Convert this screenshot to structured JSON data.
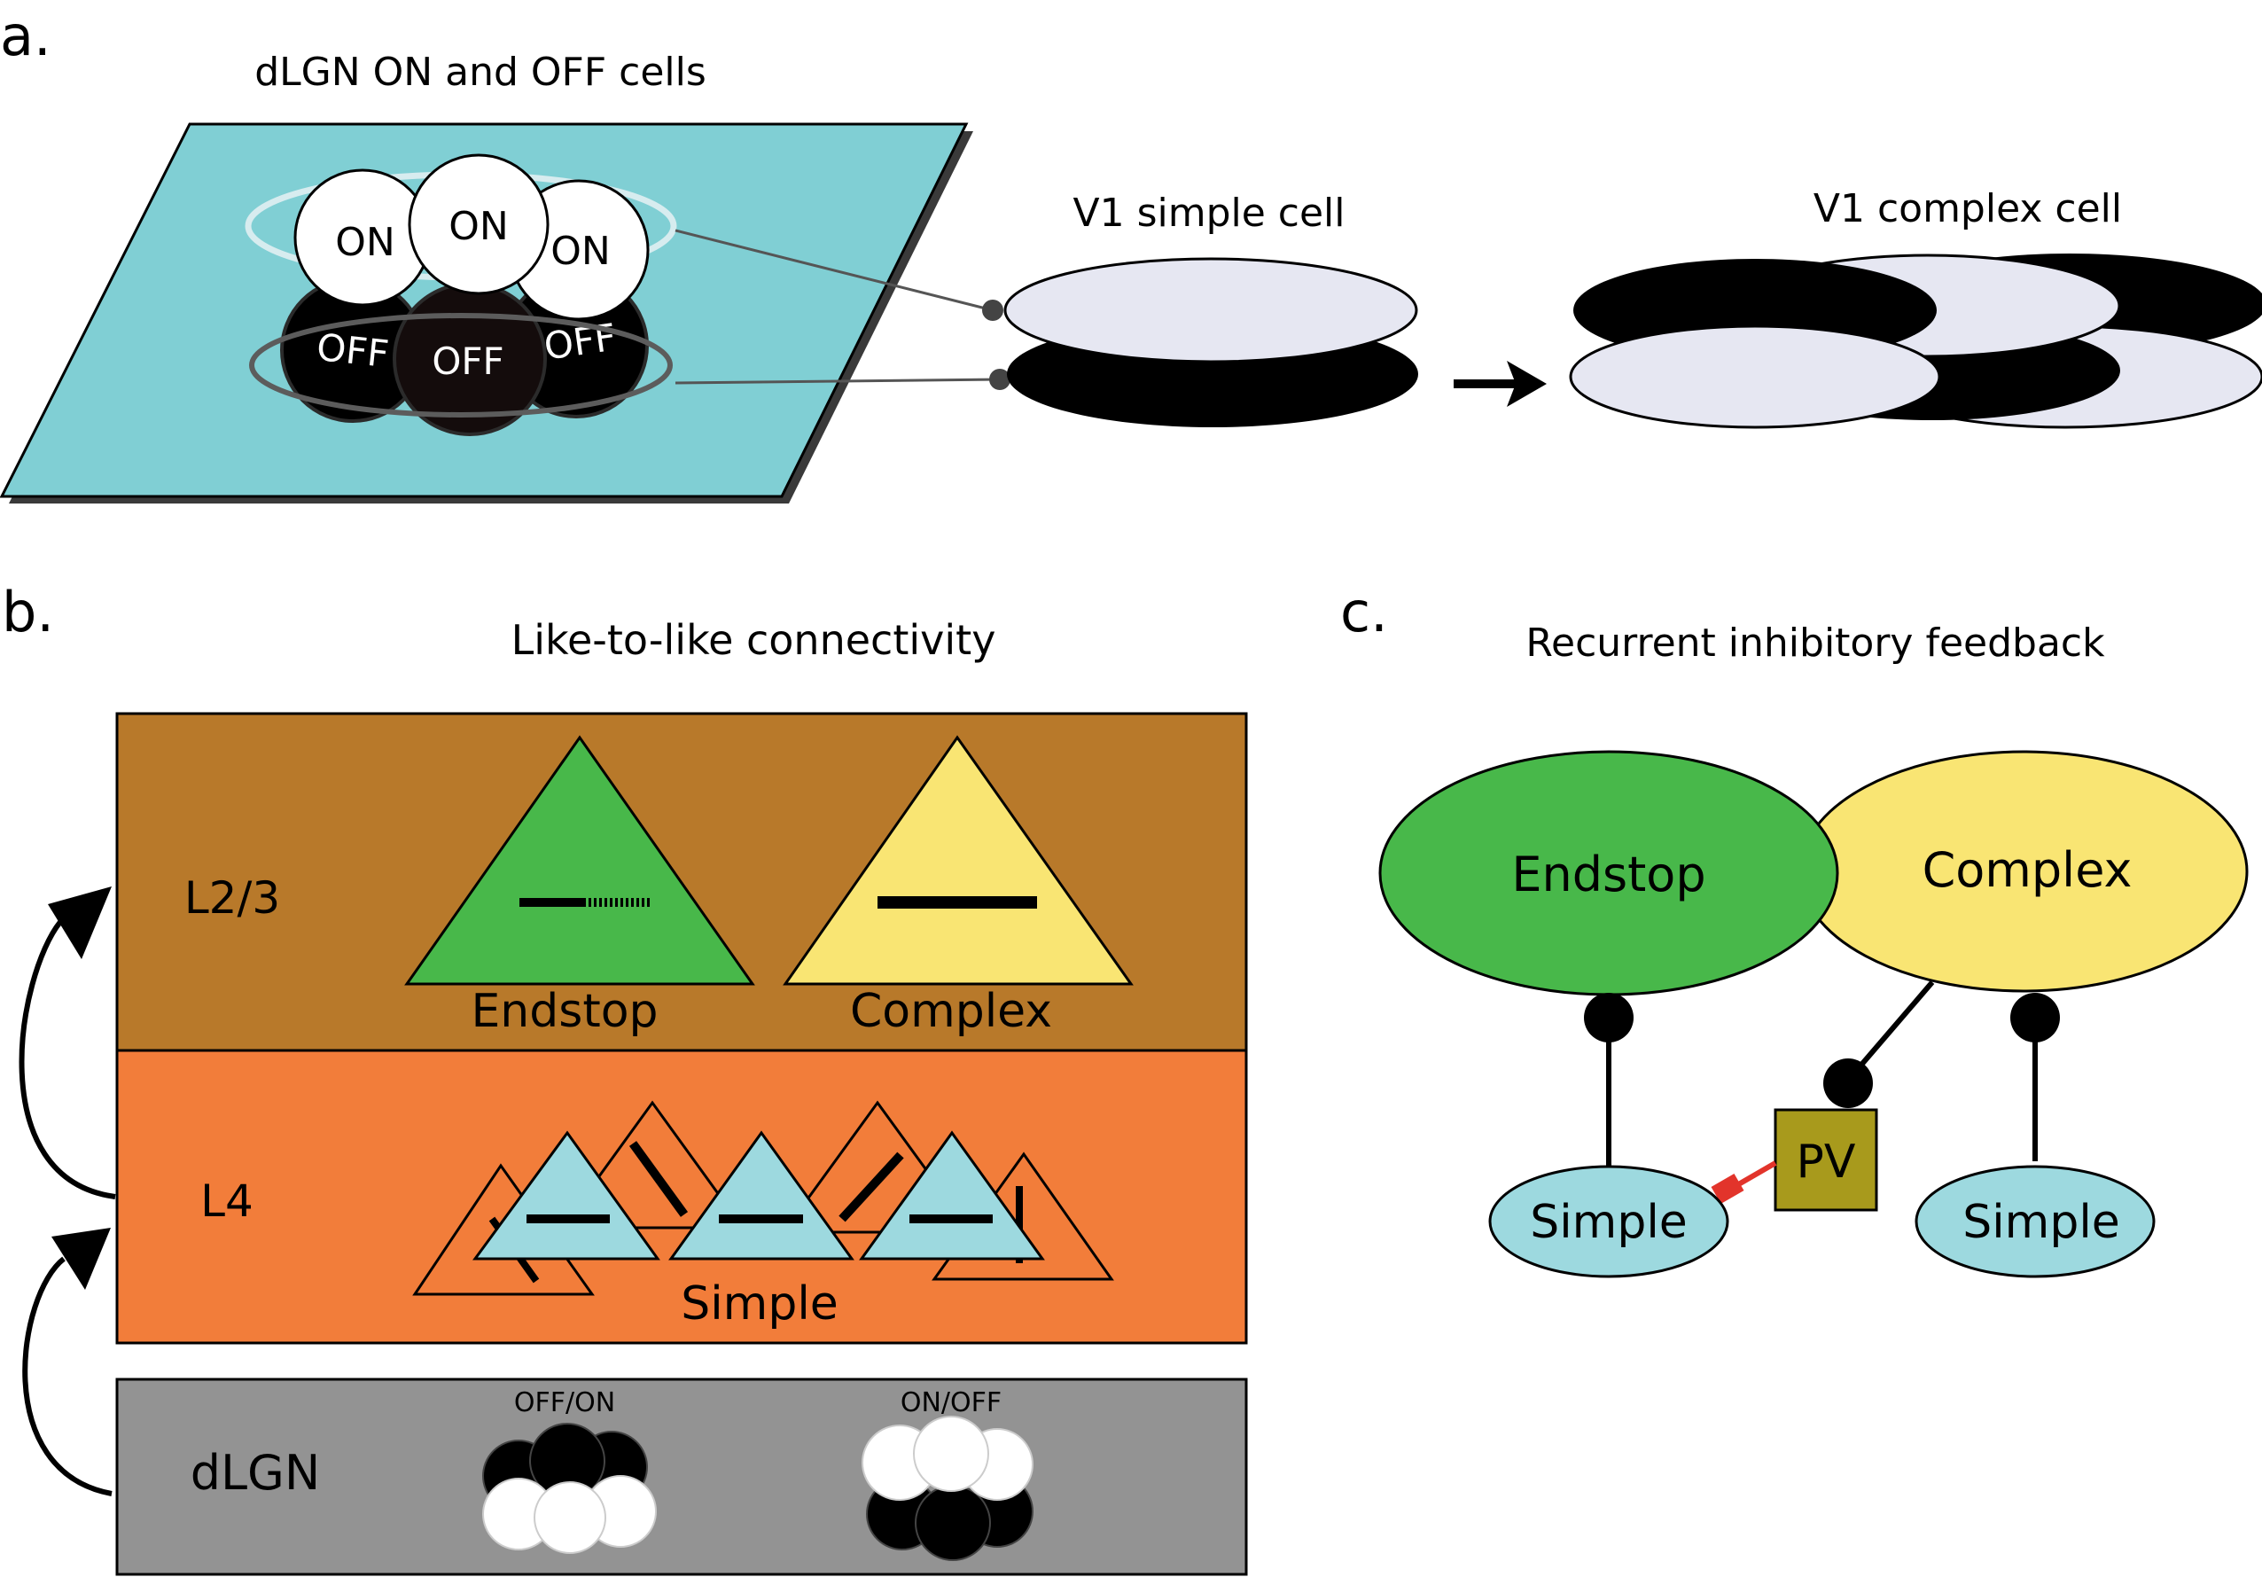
{
  "panel_a": {
    "label": "a.",
    "title": "dLGN ON and OFF cells",
    "on_labels": [
      "ON",
      "ON",
      "ON"
    ],
    "off_labels": [
      "OFF",
      "OFF",
      "OFF"
    ],
    "simple_label": "V1 simple cell",
    "complex_label": "V1 complex cell"
  },
  "panel_b": {
    "label": "b.",
    "title": "Like-to-like connectivity",
    "layer_l23": "L2/3",
    "layer_l4": "L4",
    "layer_dlgn": "dLGN",
    "endstop_label": "Endstop",
    "complex_label": "Complex",
    "simple_label": "Simple",
    "offon_label": "OFF/ON",
    "onoff_label": "ON/OFF"
  },
  "panel_c": {
    "label": "c.",
    "title": "Recurrent inhibitory feedback",
    "endstop_label": "Endstop",
    "complex_label": "Complex",
    "pv_label": "PV",
    "simple_left_label": "Simple",
    "simple_right_label": "Simple"
  },
  "colors": {
    "retina": "#80cfd4",
    "l23": "#b8792a",
    "l4": "#f27d3a",
    "dlgn": "#939393",
    "endstop": "#48b84a",
    "complex": "#f9e573",
    "simple": "#9dd9df",
    "pv": "#a89a1c",
    "inhib": "#e2342b",
    "pale": "#e6e7f2"
  }
}
